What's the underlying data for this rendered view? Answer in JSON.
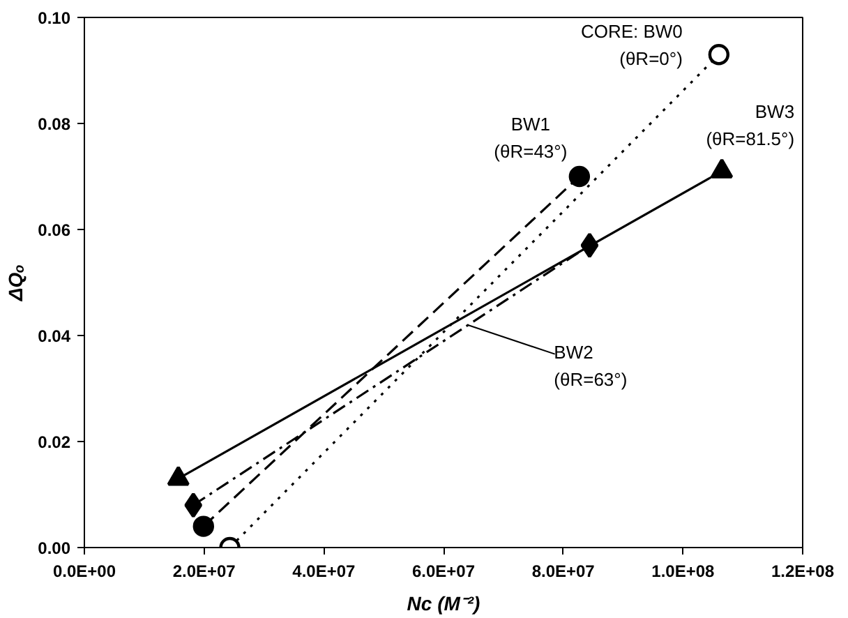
{
  "chart_data": {
    "type": "line",
    "xlabel": "Nc (M⁻²)",
    "ylabel": "ΔQₒ",
    "xlim": [
      0,
      120000000
    ],
    "ylim": [
      0,
      0.1
    ],
    "xticks": [
      {
        "value": 0,
        "label": "0.0E+00"
      },
      {
        "value": 20000000,
        "label": "2.0E+07"
      },
      {
        "value": 40000000,
        "label": "4.0E+07"
      },
      {
        "value": 60000000,
        "label": "6.0E+07"
      },
      {
        "value": 80000000,
        "label": "8.0E+07"
      },
      {
        "value": 100000000,
        "label": "1.0E+08"
      },
      {
        "value": 120000000,
        "label": "1.2E+08"
      }
    ],
    "yticks": [
      {
        "value": 0,
        "label": "0.00"
      },
      {
        "value": 0.02,
        "label": "0.02"
      },
      {
        "value": 0.04,
        "label": "0.04"
      },
      {
        "value": 0.06,
        "label": "0.06"
      },
      {
        "value": 0.08,
        "label": "0.08"
      },
      {
        "value": 0.1,
        "label": "0.10"
      }
    ],
    "grid": false,
    "series": [
      {
        "color": "#000000",
        "x": [
          24300000,
          106000000
        ],
        "values": [
          0.0,
          0.093
        ],
        "marker": "circle",
        "colors": [
          "#ffffff",
          "#ffffff"
        ],
        "line_style": "dotted"
      },
      {
        "color": "#000000",
        "x": [
          19900000,
          82700000
        ],
        "values": [
          0.004,
          0.07
        ],
        "marker": "circle",
        "line_style": "dashed"
      },
      {
        "color": "#000000",
        "x": [
          18200000,
          84400000
        ],
        "values": [
          0.008,
          0.057
        ],
        "marker": "diamond",
        "line_style": "dashdot"
      },
      {
        "color": "#000000",
        "x": [
          15700000,
          106500000
        ],
        "values": [
          0.013,
          0.071
        ],
        "marker": "triangle",
        "line_style": "solid"
      }
    ],
    "annotations": [
      {
        "text": "CORE: BW0\n(θR=0°)",
        "x": 106000000,
        "y": 0.093
      },
      {
        "text": "BW1\n(θR=43°)",
        "x": 82700000,
        "y": 0.07
      },
      {
        "text": "BW2\n(θR=63°)",
        "x": 64000000,
        "y": 0.042
      },
      {
        "text": "BW3\n(θR=81.5°)",
        "x": 106500000,
        "y": 0.071
      }
    ]
  }
}
